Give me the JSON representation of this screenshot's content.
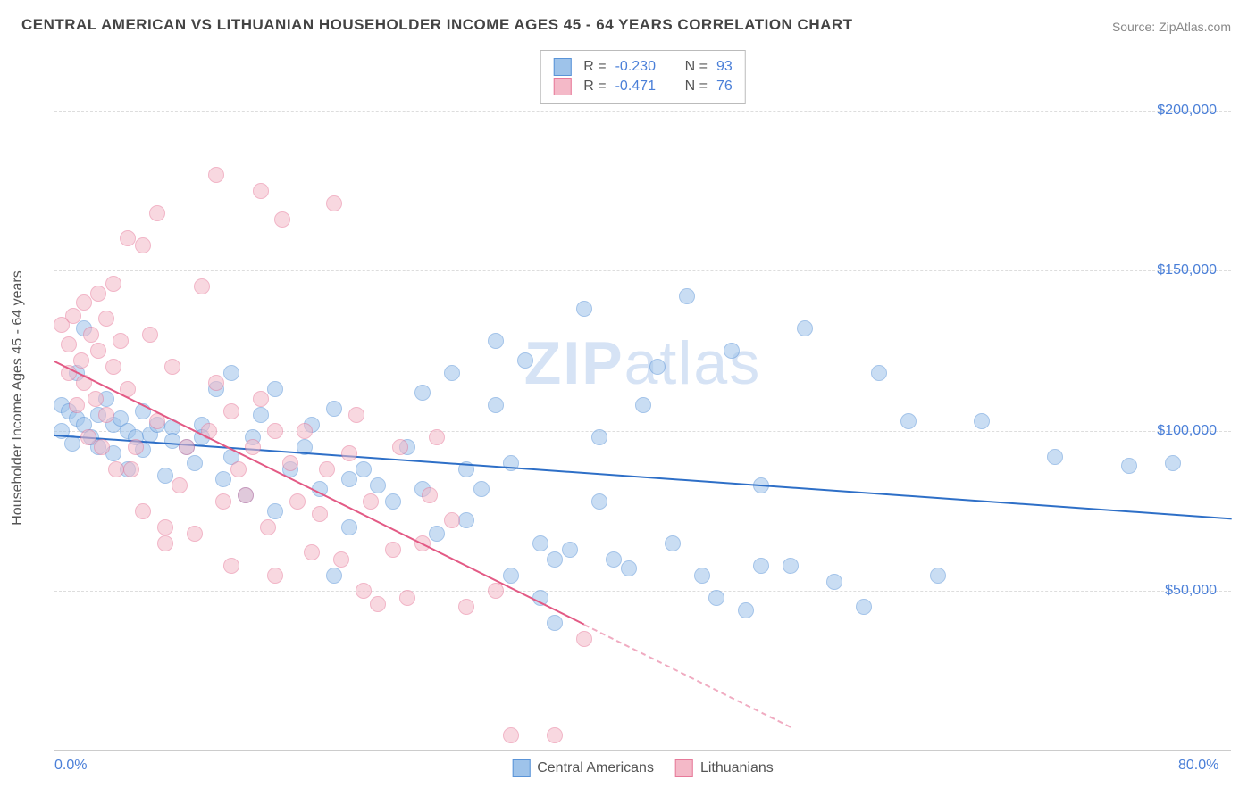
{
  "title": "CENTRAL AMERICAN VS LITHUANIAN HOUSEHOLDER INCOME AGES 45 - 64 YEARS CORRELATION CHART",
  "source": "Source: ZipAtlas.com",
  "yaxis_title": "Householder Income Ages 45 - 64 years",
  "watermark": "ZIPatlas",
  "chart": {
    "type": "scatter",
    "background_color": "#ffffff",
    "grid_color": "#dddddd",
    "axis_color": "#cccccc",
    "xlim": [
      0,
      80
    ],
    "ylim": [
      0,
      220000
    ],
    "xticks": [
      {
        "value": 0,
        "label": "0.0%"
      },
      {
        "value": 80,
        "label": "80.0%"
      }
    ],
    "yticks": [
      {
        "value": 50000,
        "label": "$50,000"
      },
      {
        "value": 100000,
        "label": "$100,000"
      },
      {
        "value": 150000,
        "label": "$150,000"
      },
      {
        "value": 200000,
        "label": "$200,000"
      }
    ],
    "point_radius": 9,
    "point_opacity": 0.55,
    "series": [
      {
        "name": "Central Americans",
        "fill_color": "#9ec3ea",
        "stroke_color": "#5a94d8",
        "trend_color": "#2e6fc7",
        "R": "-0.230",
        "N": "93",
        "trend": {
          "x1": 0,
          "y1": 99000,
          "x2": 80,
          "y2": 73000,
          "dash_from_x": null
        },
        "points": [
          [
            0.5,
            108000
          ],
          [
            0.5,
            100000
          ],
          [
            1,
            106000
          ],
          [
            1.2,
            96000
          ],
          [
            1.5,
            104000
          ],
          [
            1.5,
            118000
          ],
          [
            2,
            102000
          ],
          [
            2,
            132000
          ],
          [
            2.5,
            98000
          ],
          [
            3,
            105000
          ],
          [
            3,
            95000
          ],
          [
            3.5,
            110000
          ],
          [
            4,
            93000
          ],
          [
            4,
            102000
          ],
          [
            4.5,
            104000
          ],
          [
            5,
            100000
          ],
          [
            5,
            88000
          ],
          [
            5.5,
            98000
          ],
          [
            6,
            106000
          ],
          [
            6,
            94000
          ],
          [
            6.5,
            99000
          ],
          [
            7,
            102000
          ],
          [
            7.5,
            86000
          ],
          [
            8,
            101000
          ],
          [
            8,
            97000
          ],
          [
            9,
            95000
          ],
          [
            9.5,
            90000
          ],
          [
            10,
            102000
          ],
          [
            10,
            98000
          ],
          [
            11,
            113000
          ],
          [
            11.5,
            85000
          ],
          [
            12,
            118000
          ],
          [
            12,
            92000
          ],
          [
            13,
            80000
          ],
          [
            13.5,
            98000
          ],
          [
            14,
            105000
          ],
          [
            15,
            113000
          ],
          [
            15,
            75000
          ],
          [
            16,
            88000
          ],
          [
            17,
            95000
          ],
          [
            17.5,
            102000
          ],
          [
            18,
            82000
          ],
          [
            19,
            107000
          ],
          [
            19,
            55000
          ],
          [
            20,
            85000
          ],
          [
            20,
            70000
          ],
          [
            21,
            88000
          ],
          [
            22,
            83000
          ],
          [
            23,
            78000
          ],
          [
            24,
            95000
          ],
          [
            25,
            82000
          ],
          [
            25,
            112000
          ],
          [
            26,
            68000
          ],
          [
            27,
            118000
          ],
          [
            28,
            88000
          ],
          [
            28,
            72000
          ],
          [
            29,
            82000
          ],
          [
            30,
            128000
          ],
          [
            30,
            108000
          ],
          [
            31,
            55000
          ],
          [
            31,
            90000
          ],
          [
            32,
            122000
          ],
          [
            33,
            48000
          ],
          [
            33,
            65000
          ],
          [
            34,
            40000
          ],
          [
            34,
            60000
          ],
          [
            35,
            63000
          ],
          [
            36,
            138000
          ],
          [
            37,
            78000
          ],
          [
            37,
            98000
          ],
          [
            38,
            60000
          ],
          [
            39,
            57000
          ],
          [
            40,
            108000
          ],
          [
            41,
            120000
          ],
          [
            42,
            65000
          ],
          [
            43,
            142000
          ],
          [
            44,
            55000
          ],
          [
            45,
            48000
          ],
          [
            46,
            125000
          ],
          [
            47,
            44000
          ],
          [
            48,
            83000
          ],
          [
            48,
            58000
          ],
          [
            50,
            58000
          ],
          [
            51,
            132000
          ],
          [
            53,
            53000
          ],
          [
            55,
            45000
          ],
          [
            56,
            118000
          ],
          [
            58,
            103000
          ],
          [
            60,
            55000
          ],
          [
            63,
            103000
          ],
          [
            68,
            92000
          ],
          [
            73,
            89000
          ],
          [
            76,
            90000
          ]
        ]
      },
      {
        "name": "Lithuanians",
        "fill_color": "#f4b9c8",
        "stroke_color": "#e77a9a",
        "trend_color": "#e35a85",
        "R": "-0.471",
        "N": "76",
        "trend": {
          "x1": 0,
          "y1": 122000,
          "x2": 50,
          "y2": 8000,
          "dash_from_x": 36
        },
        "points": [
          [
            0.5,
            133000
          ],
          [
            1,
            127000
          ],
          [
            1,
            118000
          ],
          [
            1.3,
            136000
          ],
          [
            1.5,
            108000
          ],
          [
            1.8,
            122000
          ],
          [
            2,
            140000
          ],
          [
            2,
            115000
          ],
          [
            2.3,
            98000
          ],
          [
            2.5,
            130000
          ],
          [
            2.8,
            110000
          ],
          [
            3,
            143000
          ],
          [
            3,
            125000
          ],
          [
            3.2,
            95000
          ],
          [
            3.5,
            135000
          ],
          [
            3.5,
            105000
          ],
          [
            4,
            146000
          ],
          [
            4,
            120000
          ],
          [
            4.2,
            88000
          ],
          [
            4.5,
            128000
          ],
          [
            5,
            160000
          ],
          [
            5,
            113000
          ],
          [
            5.2,
            88000
          ],
          [
            5.5,
            95000
          ],
          [
            6,
            158000
          ],
          [
            6,
            75000
          ],
          [
            6.5,
            130000
          ],
          [
            7,
            168000
          ],
          [
            7,
            103000
          ],
          [
            7.5,
            65000
          ],
          [
            7.5,
            70000
          ],
          [
            8,
            120000
          ],
          [
            8.5,
            83000
          ],
          [
            9,
            95000
          ],
          [
            9.5,
            68000
          ],
          [
            10,
            145000
          ],
          [
            10.5,
            100000
          ],
          [
            11,
            180000
          ],
          [
            11,
            115000
          ],
          [
            11.5,
            78000
          ],
          [
            12,
            106000
          ],
          [
            12,
            58000
          ],
          [
            12.5,
            88000
          ],
          [
            13,
            80000
          ],
          [
            13.5,
            95000
          ],
          [
            14,
            175000
          ],
          [
            14,
            110000
          ],
          [
            14.5,
            70000
          ],
          [
            15,
            55000
          ],
          [
            15,
            100000
          ],
          [
            15.5,
            166000
          ],
          [
            16,
            90000
          ],
          [
            16.5,
            78000
          ],
          [
            17,
            100000
          ],
          [
            17.5,
            62000
          ],
          [
            18,
            74000
          ],
          [
            18.5,
            88000
          ],
          [
            19,
            171000
          ],
          [
            19.5,
            60000
          ],
          [
            20,
            93000
          ],
          [
            20.5,
            105000
          ],
          [
            21,
            50000
          ],
          [
            21.5,
            78000
          ],
          [
            22,
            46000
          ],
          [
            23,
            63000
          ],
          [
            23.5,
            95000
          ],
          [
            24,
            48000
          ],
          [
            25,
            65000
          ],
          [
            25.5,
            80000
          ],
          [
            26,
            98000
          ],
          [
            27,
            72000
          ],
          [
            28,
            45000
          ],
          [
            30,
            50000
          ],
          [
            31,
            5000
          ],
          [
            34,
            5000
          ],
          [
            36,
            35000
          ]
        ]
      }
    ]
  },
  "stats_labels": {
    "R": "R =",
    "N": "N ="
  },
  "legend_labels": [
    "Central Americans",
    "Lithuanians"
  ],
  "tick_fontsize": 16,
  "title_fontsize": 17,
  "title_color": "#444444",
  "value_color": "#4a7fd8"
}
